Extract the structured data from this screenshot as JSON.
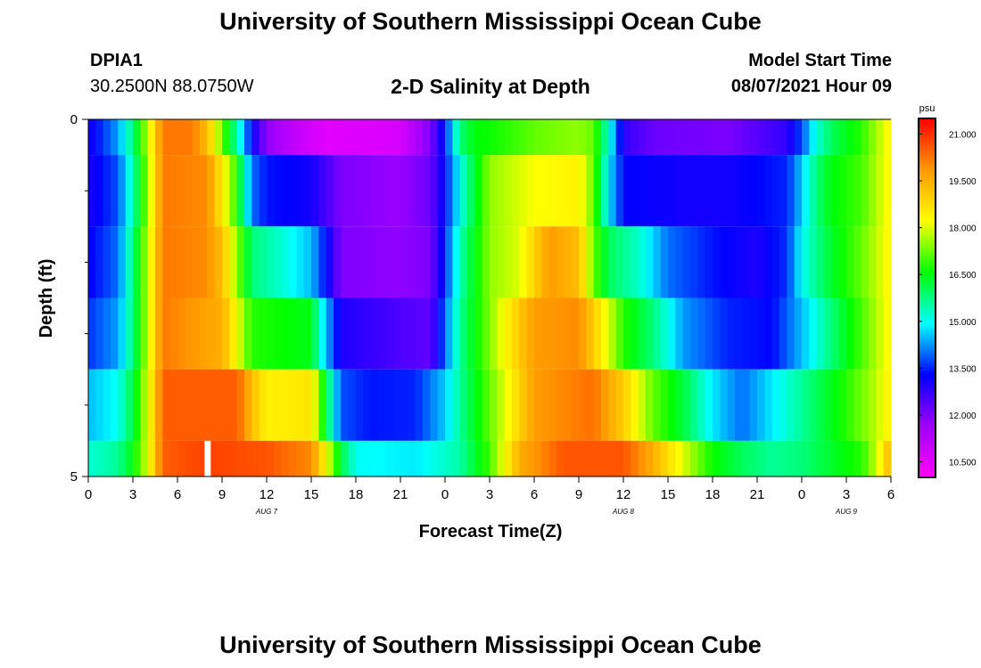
{
  "page": {
    "title_top": "University of Southern Mississippi Ocean Cube",
    "title_bottom": "University of Southern Mississippi Ocean Cube"
  },
  "station": {
    "id": "DPIA1",
    "coords": "30.2500N  88.0750W"
  },
  "model": {
    "label": "Model Start Time",
    "time": "08/07/2021 Hour 09"
  },
  "colors": {
    "colormap": [
      "#ff00ff",
      "#a000ff",
      "#0000ff",
      "#00ffff",
      "#00ff00",
      "#ffff00",
      "#ff9900",
      "#ff0000"
    ],
    "marker": "#ffffff",
    "axis": "#000000"
  },
  "chart_data": {
    "type": "heatmap",
    "title": "2-D Salinity at Depth",
    "xlabel": "Forecast Time(Z)",
    "ylabel": "Depth (ft)",
    "x_hours_range": [
      0,
      54
    ],
    "x_step_hours": 0.5,
    "x_tick_hours": [
      0,
      3,
      6,
      9,
      12,
      15,
      18,
      21,
      24,
      27,
      30,
      33,
      36,
      39,
      42,
      45,
      48,
      51,
      54
    ],
    "x_tick_labels": [
      "0",
      "3",
      "6",
      "9",
      "12",
      "15",
      "18",
      "21",
      "0",
      "3",
      "6",
      "9",
      "12",
      "15",
      "18",
      "21",
      "0",
      "3",
      "6"
    ],
    "date_labels": [
      {
        "hour": 12,
        "text": "AUG 7"
      },
      {
        "hour": 36,
        "text": "AUG 8"
      },
      {
        "hour": 51,
        "text": "AUG 9"
      }
    ],
    "y_range": [
      0,
      5
    ],
    "y_tick_labels": [
      {
        "depth": 0,
        "text": "0"
      },
      {
        "depth": 5,
        "text": "5"
      }
    ],
    "y_minor_ticks": [
      1,
      2,
      3,
      4
    ],
    "depth_layers": [
      {
        "top": 0,
        "bottom": 0.5
      },
      {
        "top": 0.5,
        "bottom": 1.5
      },
      {
        "top": 1.5,
        "bottom": 2.5
      },
      {
        "top": 2.5,
        "bottom": 3.5
      },
      {
        "top": 3.5,
        "bottom": 4.5
      },
      {
        "top": 4.5,
        "bottom": 5
      }
    ],
    "layer_salinity_keyframes": [
      [
        [
          0,
          13.0
        ],
        [
          2,
          14.3
        ],
        [
          3,
          15.8
        ],
        [
          4,
          17.8
        ],
        [
          5,
          20.2
        ],
        [
          7,
          20.2
        ],
        [
          8,
          19.3
        ],
        [
          9,
          17.2
        ],
        [
          10,
          15.5
        ],
        [
          11,
          13.3
        ],
        [
          12,
          11.8
        ],
        [
          14,
          11.0
        ],
        [
          16,
          10.5
        ],
        [
          21,
          10.7
        ],
        [
          23,
          12.0
        ],
        [
          24,
          13.5
        ],
        [
          25,
          15.8
        ],
        [
          26,
          16.5
        ],
        [
          28,
          16.8
        ],
        [
          30,
          17.2
        ],
        [
          33,
          17.5
        ],
        [
          34,
          17.2
        ],
        [
          35,
          15.3
        ],
        [
          36,
          12.8
        ],
        [
          38,
          12.2
        ],
        [
          43,
          12.0
        ],
        [
          47,
          12.8
        ],
        [
          48,
          13.8
        ],
        [
          49,
          15.2
        ],
        [
          50,
          16.0
        ],
        [
          52,
          16.8
        ],
        [
          54,
          18.4
        ]
      ],
      [
        [
          0,
          13.0
        ],
        [
          2,
          13.8
        ],
        [
          3,
          15.5
        ],
        [
          4,
          17.5
        ],
        [
          5,
          20.2
        ],
        [
          8,
          20.0
        ],
        [
          9,
          18.5
        ],
        [
          10,
          16.8
        ],
        [
          11,
          14.0
        ],
        [
          12,
          13.4
        ],
        [
          15,
          13.1
        ],
        [
          17,
          12.0
        ],
        [
          21,
          11.7
        ],
        [
          23,
          12.2
        ],
        [
          24,
          13.4
        ],
        [
          25,
          15.0
        ],
        [
          27,
          17.5
        ],
        [
          30,
          18.2
        ],
        [
          33,
          18.4
        ],
        [
          34,
          17.2
        ],
        [
          35,
          14.8
        ],
        [
          36,
          13.3
        ],
        [
          40,
          13.1
        ],
        [
          43,
          13.1
        ],
        [
          47,
          13.5
        ],
        [
          48,
          14.6
        ],
        [
          49,
          15.8
        ],
        [
          50,
          16.5
        ],
        [
          52,
          17.0
        ],
        [
          54,
          18.4
        ]
      ],
      [
        [
          0,
          13.2
        ],
        [
          2,
          14.0
        ],
        [
          3,
          15.8
        ],
        [
          4,
          17.8
        ],
        [
          5,
          20.2
        ],
        [
          8,
          20.0
        ],
        [
          9,
          19.2
        ],
        [
          10,
          17.5
        ],
        [
          11,
          15.8
        ],
        [
          13,
          15.2
        ],
        [
          15,
          14.5
        ],
        [
          16,
          13.3
        ],
        [
          17,
          12.0
        ],
        [
          21,
          11.8
        ],
        [
          23,
          12.0
        ],
        [
          24,
          13.6
        ],
        [
          25,
          15.4
        ],
        [
          27,
          17.5
        ],
        [
          29,
          18.0
        ],
        [
          31,
          19.8
        ],
        [
          33,
          19.3
        ],
        [
          34,
          17.2
        ],
        [
          35,
          16.0
        ],
        [
          37,
          15.3
        ],
        [
          39,
          14.0
        ],
        [
          42,
          13.4
        ],
        [
          45,
          13.0
        ],
        [
          47,
          13.6
        ],
        [
          48,
          15.0
        ],
        [
          50,
          16.3
        ],
        [
          52,
          17.2
        ],
        [
          54,
          18.4
        ]
      ],
      [
        [
          0,
          13.6
        ],
        [
          2,
          14.3
        ],
        [
          3,
          15.8
        ],
        [
          4,
          17.8
        ],
        [
          5,
          20.2
        ],
        [
          9,
          19.5
        ],
        [
          10,
          18.2
        ],
        [
          11,
          16.8
        ],
        [
          13,
          16.6
        ],
        [
          15,
          16.4
        ],
        [
          16,
          14.5
        ],
        [
          17,
          13.0
        ],
        [
          21,
          12.5
        ],
        [
          23,
          12.3
        ],
        [
          24,
          14.0
        ],
        [
          25,
          15.6
        ],
        [
          28,
          18.3
        ],
        [
          30,
          19.8
        ],
        [
          33,
          20.0
        ],
        [
          35,
          18.0
        ],
        [
          36,
          16.8
        ],
        [
          38,
          15.8
        ],
        [
          40,
          14.3
        ],
        [
          43,
          13.5
        ],
        [
          46,
          13.3
        ],
        [
          48,
          14.5
        ],
        [
          50,
          15.8
        ],
        [
          52,
          17.0
        ],
        [
          54,
          18.4
        ]
      ],
      [
        [
          0,
          14.5
        ],
        [
          2,
          15.0
        ],
        [
          3,
          16.2
        ],
        [
          4,
          18.0
        ],
        [
          5,
          20.5
        ],
        [
          10,
          20.5
        ],
        [
          11,
          19.3
        ],
        [
          12,
          18.4
        ],
        [
          15,
          18.6
        ],
        [
          16,
          16.2
        ],
        [
          17,
          13.8
        ],
        [
          19,
          13.4
        ],
        [
          22,
          13.5
        ],
        [
          24,
          14.6
        ],
        [
          25,
          15.6
        ],
        [
          28,
          18.0
        ],
        [
          30,
          19.8
        ],
        [
          34,
          20.3
        ],
        [
          36,
          19.0
        ],
        [
          38,
          17.2
        ],
        [
          40,
          16.2
        ],
        [
          42,
          14.8
        ],
        [
          44,
          14.0
        ],
        [
          45,
          14.4
        ],
        [
          47,
          15.2
        ],
        [
          49,
          16.0
        ],
        [
          51,
          16.8
        ],
        [
          53,
          17.8
        ],
        [
          54,
          18.5
        ]
      ],
      [
        [
          0,
          15.2
        ],
        [
          2,
          15.6
        ],
        [
          3,
          16.5
        ],
        [
          4,
          18.0
        ],
        [
          5,
          20.5
        ],
        [
          8,
          20.8
        ],
        [
          12,
          20.6
        ],
        [
          15,
          20.0
        ],
        [
          16,
          18.3
        ],
        [
          17,
          16.2
        ],
        [
          18,
          15.0
        ],
        [
          22,
          14.8
        ],
        [
          25,
          15.5
        ],
        [
          27,
          17.0
        ],
        [
          29,
          19.5
        ],
        [
          32,
          20.6
        ],
        [
          36,
          20.6
        ],
        [
          38,
          19.5
        ],
        [
          40,
          18.0
        ],
        [
          42,
          16.6
        ],
        [
          44,
          16.0
        ],
        [
          46,
          15.6
        ],
        [
          48,
          15.8
        ],
        [
          50,
          16.3
        ],
        [
          52,
          16.8
        ],
        [
          53,
          17.8
        ],
        [
          54,
          19.5
        ]
      ]
    ],
    "marker": {
      "hour": 8,
      "depth_top": 4.5,
      "depth_bottom": 5.0
    },
    "colorbar": {
      "unit": "psu",
      "range": [
        10.0,
        21.5
      ],
      "tick_values": [
        10.5,
        12.0,
        13.5,
        15.0,
        16.5,
        18.0,
        19.5,
        21.0
      ],
      "tick_labels": [
        "10.500",
        "12.000",
        "13.500",
        "15.000",
        "16.500",
        "18.000",
        "19.500",
        "21.000"
      ]
    }
  }
}
